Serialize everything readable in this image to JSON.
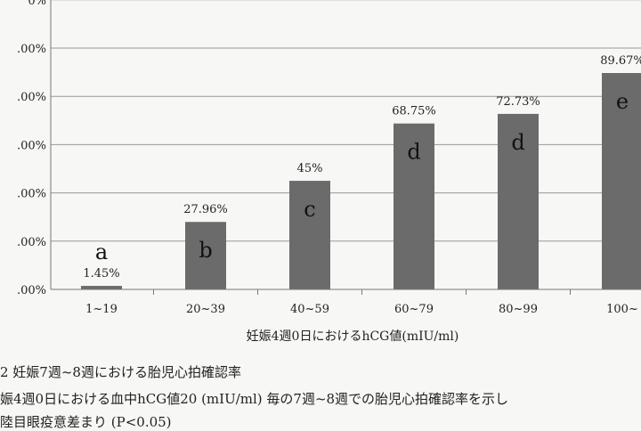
{
  "chart_data": {
    "type": "bar",
    "categories": [
      "1~19",
      "20~39",
      "40~59",
      "60~79",
      "80~99",
      "100~"
    ],
    "values": [
      1.45,
      27.96,
      45,
      68.75,
      72.73,
      89.67
    ],
    "value_labels": [
      "1.45%",
      "27.96%",
      "45%",
      "68.75%",
      "72.73%",
      "89.67%"
    ],
    "group_letters": [
      "a",
      "b",
      "c",
      "d",
      "d",
      "e"
    ],
    "xlabel": "妊娠4週0日におけるhCG値(mIU/ml)",
    "ylabel": "",
    "ylim": [
      0,
      120
    ],
    "yticks": [
      0,
      20,
      40,
      60,
      80,
      100,
      120
    ],
    "ytick_labels": [
      ".00%",
      ".00%",
      ".00%",
      ".00%",
      ".00%",
      ".00%",
      "0%"
    ],
    "grid": true,
    "bar_color": "#6b6b6b"
  },
  "caption": {
    "title": "2 妊娠7週~8週における胎児心拍確認率",
    "body": "娠4週0日における血中hCG値20 (mIU/ml) 毎の7週~8週での胎児心拍確認率を示し",
    "cut_line": "陸目眼疫意差まり (P<0.05)"
  }
}
